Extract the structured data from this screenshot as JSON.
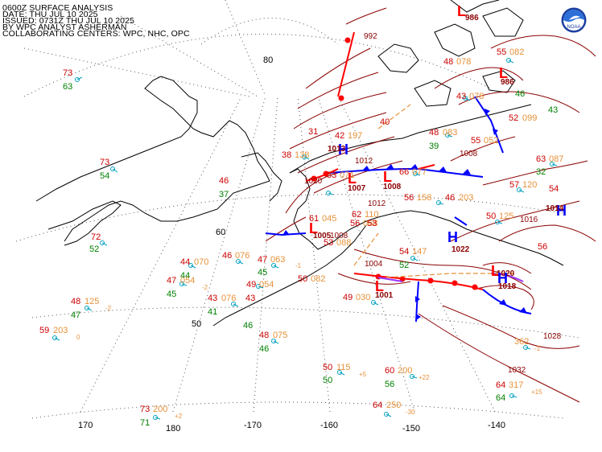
{
  "header": {
    "line1": "0600Z SURFACE ANALYSIS",
    "line2": "DATE: THU JUL 10 2025",
    "line3": "ISSUED: 0731Z THU JUL 10 2025",
    "line4": "BY WPC ANALYST ASHERMAN",
    "line5": "COLLABORATING CENTERS: WPC, NHC, OPC"
  },
  "logo": {
    "name": "noaa-logo",
    "text": "NOAA"
  },
  "colors": {
    "background": "#ffffff",
    "coast": "#000000",
    "grid": "#555555",
    "isobar": "#8b0000",
    "low": "#ff0000",
    "high": "#0000ff",
    "warm_front": "#ff0000",
    "cold_front": "#0000ff",
    "occluded_front": "#9933ff",
    "trough": "#e69138",
    "temp": "#cc0000",
    "dew": "#008000",
    "pressure": "#e69138",
    "wind": "#00a0c0"
  },
  "grid_labels": {
    "lat": [
      "80",
      "60",
      "50"
    ],
    "lon": [
      "170",
      "180",
      "-170",
      "-160",
      "-150",
      "-140"
    ]
  },
  "pressure_centers": [
    {
      "type": "L",
      "value": "1007"
    },
    {
      "type": "L",
      "value": "1008"
    },
    {
      "type": "L",
      "value": "1005"
    },
    {
      "type": "L",
      "value": "1001"
    },
    {
      "type": "L",
      "value": "986"
    },
    {
      "type": "L",
      "value": "986"
    },
    {
      "type": "L",
      "value": "1020"
    },
    {
      "type": "H",
      "value": "1013"
    },
    {
      "type": "H",
      "value": "1022"
    },
    {
      "type": "H",
      "value": "1018"
    },
    {
      "type": "H",
      "value": "1014"
    }
  ],
  "isobar_labels": [
    "992",
    "1012",
    "1012",
    "1016",
    "1020",
    "1028",
    "1032",
    "1008",
    "1008",
    "1004"
  ],
  "stations": [
    {
      "t": "73",
      "d": "63"
    },
    {
      "t": "46",
      "d": "37"
    },
    {
      "t": "72",
      "d": "52"
    },
    {
      "t": "73",
      "d": "54"
    },
    {
      "t": "44",
      "p": "070",
      "d": "44"
    },
    {
      "t": "47",
      "p": "054",
      "d": "45",
      "tend": "-2"
    },
    {
      "t": "46",
      "p": "076"
    },
    {
      "t": "47",
      "p": "063",
      "d": "45",
      "tend": "-1"
    },
    {
      "t": "49",
      "p": "054"
    },
    {
      "t": "43",
      "p": "076",
      "d": "41"
    },
    {
      "t": "48",
      "p": "125",
      "d": "47",
      "tend": "-2"
    },
    {
      "t": "59",
      "p": "203",
      "tend": "0"
    },
    {
      "t": "43",
      "d": "46"
    },
    {
      "t": "48",
      "p": "075",
      "d": "46"
    },
    {
      "t": "50",
      "p": "115",
      "d": "50",
      "tend": "+5"
    },
    {
      "t": "60",
      "p": "200",
      "d": "56",
      "tend": "+22"
    },
    {
      "t": "64",
      "p": "250",
      "tend": "-30"
    },
    {
      "t": "73",
      "p": "200",
      "d": "71",
      "tend": "+2"
    },
    {
      "t": "49",
      "p": "030"
    },
    {
      "t": "54",
      "p": "147",
      "d": "52"
    },
    {
      "t": "56",
      "p": "158"
    },
    {
      "t": "46",
      "p": "203"
    },
    {
      "t": "50",
      "p": "125"
    },
    {
      "t": "57",
      "p": "120"
    },
    {
      "t": "63",
      "p": "087",
      "d": "32"
    },
    {
      "t": "64",
      "p": "317",
      "d": "64",
      "tend": "+15"
    },
    {
      "t": "362",
      "tend": "-1"
    },
    {
      "t": "55",
      "p": "082"
    },
    {
      "t": "53",
      "p": "071"
    },
    {
      "t": "66",
      "p": "077"
    },
    {
      "t": "48",
      "p": "083",
      "d": "39"
    },
    {
      "t": "52",
      "p": "099"
    },
    {
      "t": "43",
      "p": "078"
    },
    {
      "t": "42",
      "p": "197"
    },
    {
      "t": "38",
      "p": "138"
    },
    {
      "t": "40"
    },
    {
      "t": "31"
    },
    {
      "t": "55",
      "p": "052"
    },
    {
      "t": "48",
      "p": "078"
    },
    {
      "t": "56",
      "p": "068"
    },
    {
      "t": "62",
      "p": "110"
    },
    {
      "t": "61",
      "p": "045"
    },
    {
      "t": "50",
      "p": "082"
    },
    {
      "t": "53",
      "p": "088"
    },
    {
      "t": "54"
    },
    {
      "t": "56"
    },
    {
      "t": "46"
    },
    {
      "t": "43"
    },
    {
      "t": "53",
      "d": "39"
    }
  ]
}
